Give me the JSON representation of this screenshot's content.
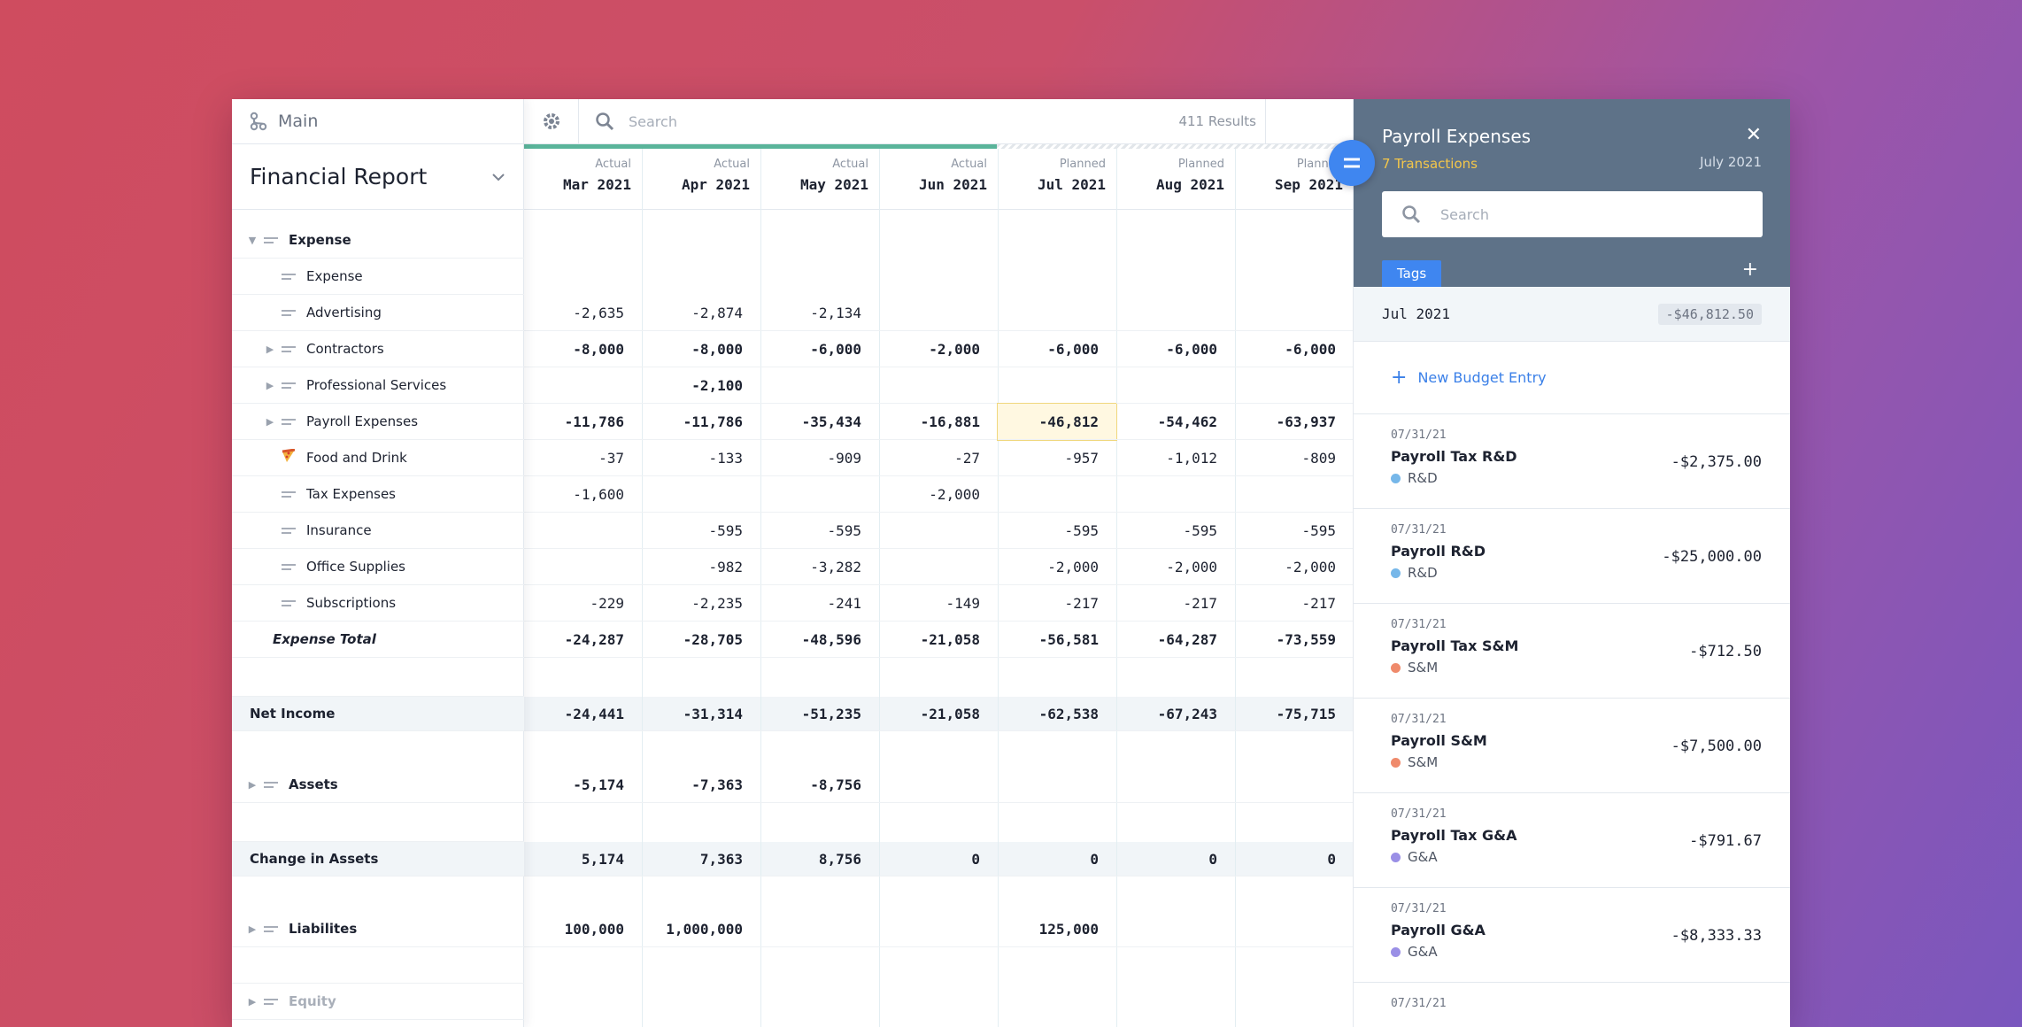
{
  "sidebar": {
    "workspace_label": "Main",
    "report_title": "Financial Report",
    "rows": [
      {
        "label": "Expense"
      },
      {
        "label": "Expense"
      },
      {
        "label": "Advertising"
      },
      {
        "label": "Contractors"
      },
      {
        "label": "Professional Services"
      },
      {
        "label": "Payroll Expenses"
      },
      {
        "label": "Food and Drink",
        "icon": "pizza-icon"
      },
      {
        "label": "Tax Expenses"
      },
      {
        "label": "Insurance"
      },
      {
        "label": "Office Supplies"
      },
      {
        "label": "Subscriptions"
      },
      {
        "label": "Expense Total"
      },
      {
        "label": "Net Income"
      },
      {
        "label": "Assets"
      },
      {
        "label": "Change in Assets"
      },
      {
        "label": "Liabilites"
      },
      {
        "label": "Equity"
      }
    ]
  },
  "toolbar": {
    "search_placeholder": "Search",
    "results": "411 Results"
  },
  "columns": [
    {
      "kind": "Actual",
      "month": "Mar 2021"
    },
    {
      "kind": "Actual",
      "month": "Apr 2021"
    },
    {
      "kind": "Actual",
      "month": "May 2021"
    },
    {
      "kind": "Actual",
      "month": "Jun 2021"
    },
    {
      "kind": "Planned",
      "month": "Jul 2021"
    },
    {
      "kind": "Planned",
      "month": "Aug 2021"
    },
    {
      "kind": "Planned",
      "month": "Sep 2021"
    }
  ],
  "values": {
    "advertising": [
      "-2,635",
      "-2,874",
      "-2,134",
      "",
      "",
      "",
      ""
    ],
    "contractors": [
      "-8,000",
      "-8,000",
      "-6,000",
      "-2,000",
      "-6,000",
      "-6,000",
      "-6,000"
    ],
    "professional_services": [
      "",
      "-2,100",
      "",
      "",
      "",
      "",
      ""
    ],
    "payroll_expenses": [
      "-11,786",
      "-11,786",
      "-35,434",
      "-16,881",
      "-46,812",
      "-54,462",
      "-63,937"
    ],
    "food_and_drink": [
      "-37",
      "-133",
      "-909",
      "-27",
      "-957",
      "-1,012",
      "-809"
    ],
    "tax_expenses": [
      "-1,600",
      "",
      "",
      "-2,000",
      "",
      "",
      ""
    ],
    "insurance": [
      "",
      "-595",
      "-595",
      "",
      "-595",
      "-595",
      "-595"
    ],
    "office_supplies": [
      "",
      "-982",
      "-3,282",
      "",
      "-2,000",
      "-2,000",
      "-2,000"
    ],
    "subscriptions": [
      "-229",
      "-2,235",
      "-241",
      "-149",
      "-217",
      "-217",
      "-217"
    ],
    "expense_total": [
      "-24,287",
      "-28,705",
      "-48,596",
      "-21,058",
      "-56,581",
      "-64,287",
      "-73,559"
    ],
    "net_income": [
      "-24,441",
      "-31,314",
      "-51,235",
      "-21,058",
      "-62,538",
      "-67,243",
      "-75,715"
    ],
    "assets": [
      "-5,174",
      "-7,363",
      "-8,756",
      "",
      "",
      "",
      ""
    ],
    "change_in_assets": [
      "5,174",
      "7,363",
      "8,756",
      "0",
      "0",
      "0",
      "0"
    ],
    "liabilities": [
      "100,000",
      "1,000,000",
      "",
      "",
      "125,000",
      "",
      ""
    ]
  },
  "panel": {
    "title": "Payroll Expenses",
    "transactions": "7 Transactions",
    "date": "July 2021",
    "search_placeholder": "Search",
    "tags_label": "Tags",
    "month_label": "Jul 2021",
    "month_amount": "-$46,812.50",
    "new_entry": "New Budget Entry",
    "items": [
      {
        "date": "07/31/21",
        "name": "Payroll Tax R&D",
        "amount": "-$2,375.00",
        "tag": "R&D",
        "color": "#76b7e9"
      },
      {
        "date": "07/31/21",
        "name": "Payroll R&D",
        "amount": "-$25,000.00",
        "tag": "R&D",
        "color": "#76b7e9"
      },
      {
        "date": "07/31/21",
        "name": "Payroll Tax S&M",
        "amount": "-$712.50",
        "tag": "S&M",
        "color": "#ef8a6b"
      },
      {
        "date": "07/31/21",
        "name": "Payroll S&M",
        "amount": "-$7,500.00",
        "tag": "S&M",
        "color": "#ef8a6b"
      },
      {
        "date": "07/31/21",
        "name": "Payroll Tax G&A",
        "amount": "-$791.67",
        "tag": "G&A",
        "color": "#9a8fe6"
      },
      {
        "date": "07/31/21",
        "name": "Payroll G&A",
        "amount": "-$8,333.33",
        "tag": "G&A",
        "color": "#9a8fe6"
      },
      {
        "date": "07/31/21",
        "name": "",
        "amount": "",
        "tag": "",
        "color": ""
      }
    ]
  }
}
